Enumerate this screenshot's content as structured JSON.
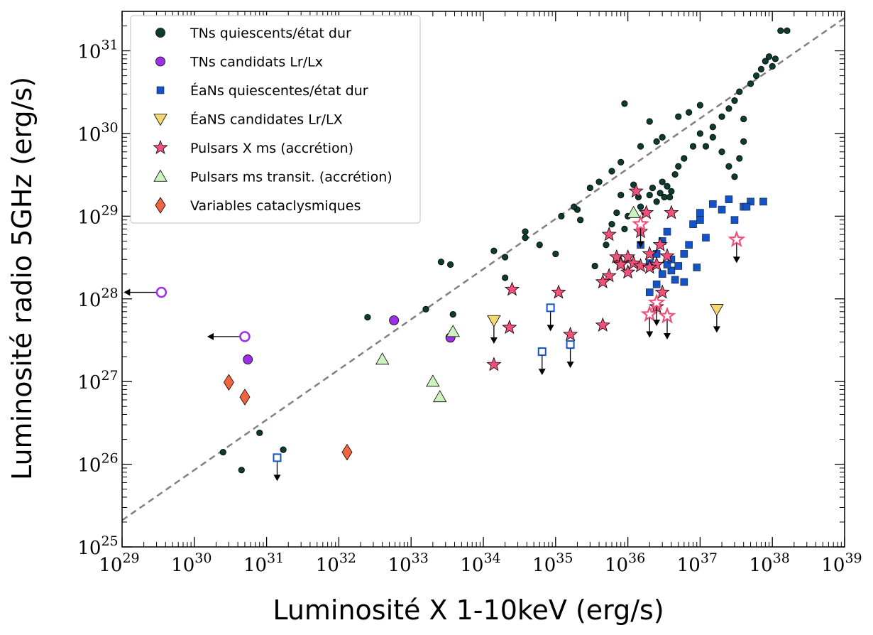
{
  "chart_data": {
    "type": "scatter",
    "xlabel": "Luminosité X 1-10keV (erg/s)",
    "ylabel": "Luminosité radio 5GHz (erg/s)",
    "x_scale": "log",
    "y_scale": "log",
    "xlim": [
      1e+29,
      1e+39
    ],
    "ylim": [
      1e+25,
      3e+31
    ],
    "x_tick_exponents": [
      29,
      30,
      31,
      32,
      33,
      34,
      35,
      36,
      37,
      38,
      39
    ],
    "y_tick_exponents": [
      25,
      26,
      27,
      28,
      29,
      30,
      31
    ],
    "tick_base": "10",
    "legend_position": "upper-left",
    "reference_line": {
      "style": "dashed",
      "color": "#808080",
      "points": [
        [
          1e+29,
          2.1e+25
        ],
        [
          1e+39,
          2.5e+31
        ]
      ]
    },
    "series": [
      {
        "name": "TNs quiescents/état dur",
        "marker": "circle",
        "color": "#0d3b32",
        "points": [
          [
            2.5e+30,
            1.4e+26
          ],
          [
            4.5e+30,
            8.5e+25
          ],
          [
            8e+30,
            2.4e+26
          ],
          [
            1.7e+31,
            1.5e+26
          ],
          [
            2.5e+32,
            6e+27
          ],
          [
            1.6e+33,
            7.5e+27
          ],
          [
            3.8e+33,
            6.5e+27
          ],
          [
            3.5e+33,
            2.6e+28
          ],
          [
            2.6e+33,
            2.8e+28
          ],
          [
            1.4e+34,
            3.8e+28
          ],
          [
            2e+34,
            3.2e+28
          ],
          [
            2e+34,
            1.8e+28
          ],
          [
            3.8e+34,
            5.5e+28
          ],
          [
            3.8e+34,
            6.5e+28
          ],
          [
            6e+34,
            4.5e+28
          ],
          [
            1e+35,
            3.5e+28
          ],
          [
            2e+35,
            1.2e+29
          ],
          [
            2.2e+35,
            9e+28
          ],
          [
            3.5e+35,
            2.5e+28
          ],
          [
            5e+35,
            4.5e+28
          ],
          [
            6e+35,
            8e+28
          ],
          [
            7e+35,
            1.1e+29
          ],
          [
            8e+35,
            1.8e+29
          ],
          [
            9e+35,
            7e+28
          ],
          [
            1e+36,
            1e+29
          ],
          [
            1.2e+36,
            2.4e+29
          ],
          [
            1.4e+36,
            1.7e+29
          ],
          [
            1.5e+36,
            1.3e+29
          ],
          [
            1.7e+36,
            1.1e+29
          ],
          [
            2e+36,
            1.8e+29
          ],
          [
            2.2e+36,
            2.2e+29
          ],
          [
            2.5e+36,
            1.5e+29
          ],
          [
            2.8e+36,
            1.9e+29
          ],
          [
            3e+36,
            2.6e+29
          ],
          [
            3.2e+36,
            1.7e+29
          ],
          [
            3.5e+36,
            2.3e+29
          ],
          [
            3.8e+36,
            1.7e+29
          ],
          [
            4e+36,
            2e+29
          ],
          [
            4.5e+36,
            3.2e+29
          ],
          [
            5e+36,
            4e+29
          ],
          [
            6e+36,
            5e+29
          ],
          [
            8e+36,
            7e+29
          ],
          [
            1e+37,
            1e+30
          ],
          [
            1.2e+37,
            7e+29
          ],
          [
            1.5e+37,
            1.2e+30
          ],
          [
            2e+37,
            1.6e+30
          ],
          [
            2.5e+37,
            2e+30
          ],
          [
            3e+37,
            2.5e+30
          ],
          [
            3.5e+37,
            3.2e+30
          ],
          [
            4e+37,
            1.5e+30
          ],
          [
            5e+37,
            4e+30
          ],
          [
            6e+37,
            5e+30
          ],
          [
            7e+37,
            6e+30
          ],
          [
            8e+37,
            7.5e+30
          ],
          [
            9e+37,
            8.5e+30
          ],
          [
            1e+38,
            6.5e+30
          ],
          [
            1.1e+38,
            8e+30
          ],
          [
            1.3e+38,
            1.75e+31
          ],
          [
            1.6e+38,
            1.75e+31
          ],
          [
            9e+35,
            2.3e+30
          ],
          [
            2e+36,
            1.4e+30
          ],
          [
            3e+36,
            9e+29
          ],
          [
            5e+36,
            1.6e+30
          ],
          [
            7e+36,
            1.8e+30
          ],
          [
            1e+37,
            2.2e+30
          ],
          [
            1.5e+37,
            9e+29
          ],
          [
            2e+37,
            6e+29
          ],
          [
            2.5e+37,
            4e+29
          ],
          [
            3e+37,
            3e+29
          ],
          [
            3.5e+37,
            5e+29
          ],
          [
            4e+37,
            8e+29
          ],
          [
            1.5e+36,
            7e+29
          ],
          [
            2.5e+36,
            8e+29
          ],
          [
            6e+35,
            3.5e+29
          ],
          [
            8e+35,
            4.5e+29
          ],
          [
            4e+35,
            2.6e+29
          ],
          [
            3e+35,
            2.2e+29
          ],
          [
            1.8e+35,
            1.3e+29
          ],
          [
            1.2e+35,
            1e+29
          ]
        ]
      },
      {
        "name": "TNs candidats Lr/Lx",
        "marker": "circle",
        "color": "#9b30e6",
        "points": [
          [
            5.5e+30,
            1.85e+27
          ],
          [
            5.8e+32,
            5.5e+27
          ],
          [
            3.5e+33,
            3.4e+27
          ]
        ],
        "upper_limit_points": [
          [
            3.5e+29,
            1.2e+28
          ],
          [
            5e+30,
            3.5e+27
          ]
        ]
      },
      {
        "name": "ÉaNs quiescentes/état dur",
        "marker": "square",
        "color": "#1452c8",
        "points": [
          [
            1.5e+36,
            4.5e+28
          ],
          [
            2e+36,
            2.7e+28
          ],
          [
            2.5e+36,
            3.5e+28
          ],
          [
            3e+36,
            5e+28
          ],
          [
            3.5e+36,
            6.5e+28
          ],
          [
            4e+36,
            2.2e+28
          ],
          [
            4.5e+36,
            1.7e+28
          ],
          [
            5e+36,
            2.5e+28
          ],
          [
            6e+36,
            3.5e+28
          ],
          [
            7e+36,
            4.5e+28
          ],
          [
            8e+36,
            8e+28
          ],
          [
            1e+37,
            9e+28
          ],
          [
            1.5e+37,
            1.4e+29
          ],
          [
            2e+37,
            1.2e+29
          ],
          [
            2.5e+37,
            1.6e+29
          ],
          [
            3e+37,
            9e+28
          ],
          [
            4e+37,
            1.3e+29
          ],
          [
            5e+37,
            1.5e+29
          ],
          [
            2e+36,
            1.2e+28
          ],
          [
            2.5e+36,
            1.5e+28
          ],
          [
            3e+36,
            2e+28
          ],
          [
            3.5e+36,
            2.6e+28
          ],
          [
            4e+36,
            3e+28
          ],
          [
            1e+37,
            1.1e+29
          ],
          [
            4.4e+37,
            1.3e+29
          ],
          [
            7.5e+37,
            1.5e+29
          ],
          [
            1.2e+37,
            5.5e+28
          ],
          [
            9e+36,
            2.4e+28
          ],
          [
            6e+36,
            1.6e+28
          ]
        ],
        "upper_limit_points": [
          [
            1.4e+31,
            1.2e+26
          ],
          [
            6.5e+34,
            2.3e+27
          ],
          [
            8.5e+34,
            7.8e+27
          ],
          [
            1.6e+35,
            2.8e+27
          ]
        ]
      },
      {
        "name": "ÉaNS candidates Lr/LX",
        "marker": "triangle-down",
        "color": "#f2d86e",
        "upper_limit_points": [
          [
            1.4e+34,
            5.5e+27
          ],
          [
            1.7e+37,
            7.5e+27
          ]
        ]
      },
      {
        "name": "Pulsars X ms (accrétion)",
        "marker": "star",
        "color": "#f0507a",
        "points": [
          [
            2.5e+34,
            1.3e+28
          ],
          [
            1.4e+34,
            1.6e+27
          ],
          [
            2.3e+34,
            4.5e+27
          ],
          [
            1.1e+35,
            1.2e+28
          ],
          [
            1.6e+35,
            3.7e+27
          ],
          [
            4.5e+35,
            4.8e+27
          ],
          [
            5.5e+35,
            6e+28
          ],
          [
            7e+35,
            3.2e+28
          ],
          [
            8e+35,
            2.7e+28
          ],
          [
            1e+36,
            3.2e+28
          ],
          [
            1.2e+36,
            2.7e+28
          ],
          [
            1.3e+36,
            2e+29
          ],
          [
            1.5e+36,
            6.5e+28
          ],
          [
            1.8e+36,
            1.1e+29
          ],
          [
            2e+36,
            3.5e+28
          ],
          [
            2.5e+36,
            2.6e+28
          ],
          [
            2.8e+36,
            4.5e+28
          ],
          [
            3e+36,
            1.2e+28
          ],
          [
            3.5e+36,
            3.3e+28
          ],
          [
            4e+36,
            1.1e+29
          ],
          [
            1e+36,
            2.1e+28
          ],
          [
            1.5e+36,
            2.5e+28
          ],
          [
            2e+36,
            2.4e+28
          ],
          [
            2.5e+36,
            8e+27
          ],
          [
            5.5e+35,
            1.9e+28
          ],
          [
            4.5e+35,
            1.6e+28
          ],
          [
            8e+35,
            2.6e+28
          ]
        ],
        "upper_limit_points": [
          [
            3.2e+37,
            5.2e+28
          ],
          [
            2e+36,
            6.5e+27
          ],
          [
            3.5e+36,
            6.2e+27
          ],
          [
            2.5e+36,
            9e+27
          ],
          [
            1.5e+36,
            8e+28
          ]
        ]
      },
      {
        "name": "Pulsars ms transit. (accrétion)",
        "marker": "triangle-up",
        "color": "#ccf2c0",
        "points": [
          [
            4e+32,
            1.85e+27
          ],
          [
            2e+33,
            1e+27
          ],
          [
            2.5e+33,
            6.5e+26
          ],
          [
            3.8e+33,
            4e+27
          ],
          [
            1.2e+36,
            1.1e+29
          ]
        ]
      },
      {
        "name": "Variables cataclysmiques",
        "marker": "diamond",
        "color": "#f26440",
        "points": [
          [
            3e+30,
            9.8e+26
          ],
          [
            5e+30,
            6.5e+26
          ],
          [
            1.3e+32,
            1.4e+26
          ]
        ]
      }
    ]
  }
}
